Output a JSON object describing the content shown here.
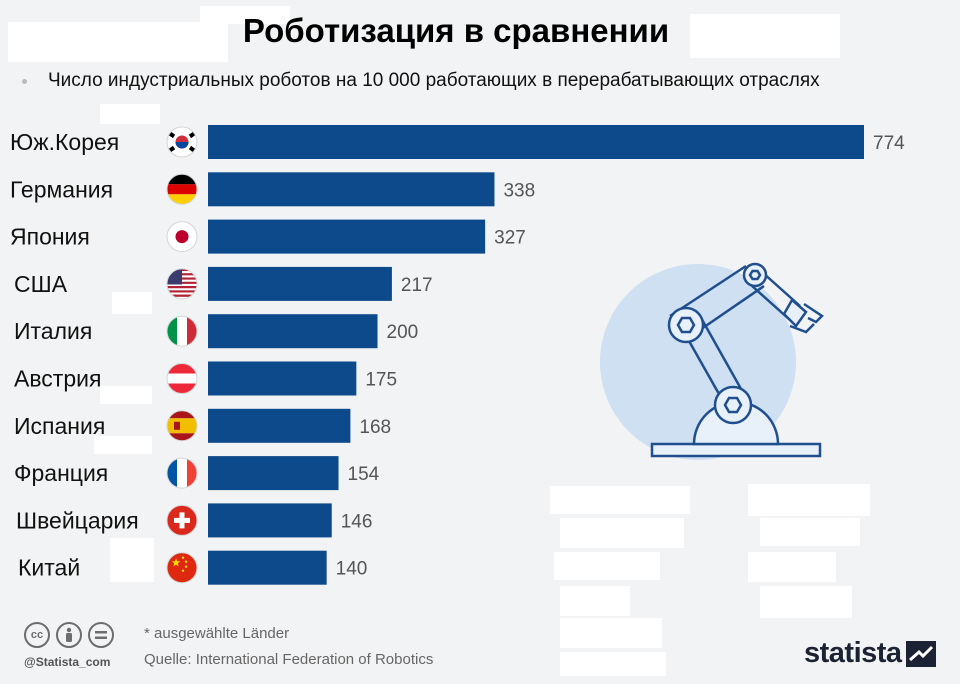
{
  "header": {
    "title": "Роботизация в сравнении",
    "subtitle": "Число индустриальных роботов на 10 000 работающих в перерабатывающих отраслях"
  },
  "colors": {
    "bar": "#0d4a8c",
    "background": "#f2f3f4",
    "robot_circle": "#cfe0f2",
    "robot_line": "#1f4f8f"
  },
  "chart_data": {
    "type": "bar",
    "orientation": "horizontal",
    "title": "Роботизация в сравнении",
    "subtitle": "Число индустриальных роботов на 10 000 работающих в перерабатывающих отраслях",
    "categories": [
      "Юж.Корея",
      "Германия",
      "Япония",
      "США",
      "Италия",
      "Австрия",
      "Испания",
      "Франция",
      "Швейцария",
      "Китай"
    ],
    "values": [
      774,
      338,
      327,
      217,
      200,
      175,
      168,
      154,
      146,
      140
    ],
    "flags": [
      "south-korea-flag-icon",
      "germany-flag-icon",
      "japan-flag-icon",
      "usa-flag-icon",
      "italy-flag-icon",
      "austria-flag-icon",
      "spain-flag-icon",
      "france-flag-icon",
      "switzerland-flag-icon",
      "china-flag-icon"
    ],
    "xlim": [
      0,
      774
    ],
    "grid": false,
    "legend": "none"
  },
  "footer": {
    "note": "* ausgewählte Länder",
    "source": "Quelle: International Federation of Robotics",
    "handle": "@Statista_com",
    "brand": "statista",
    "cc_icons": [
      "cc-icon",
      "by-icon",
      "nd-icon"
    ]
  }
}
